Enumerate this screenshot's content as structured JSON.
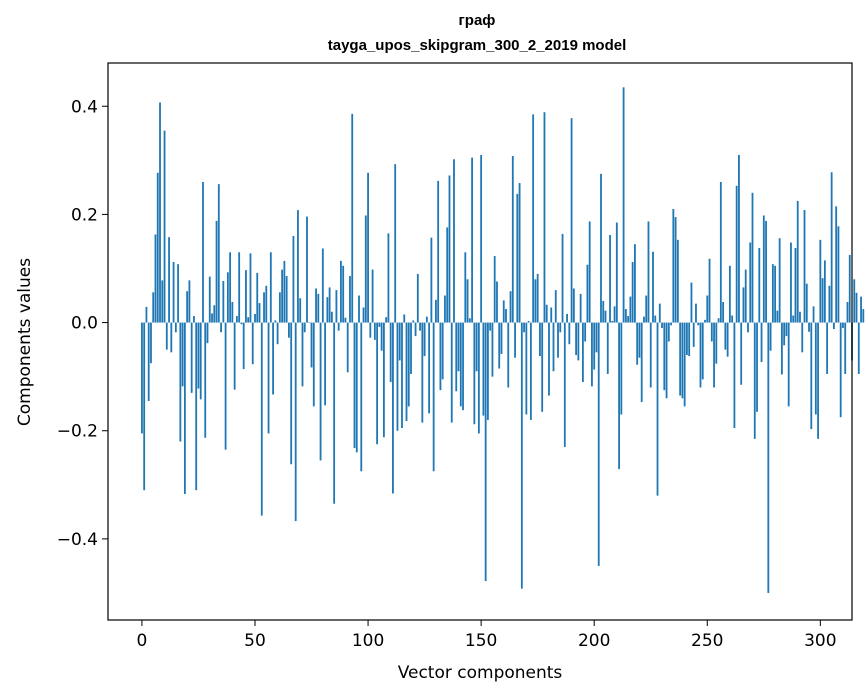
{
  "chart_data": {
    "type": "bar",
    "title_line1": "граф",
    "title_line2": "tayga_upos_skipgram_300_2_2019 model",
    "xlabel": "Vector components",
    "ylabel": "Components values",
    "xlim": [
      -15,
      314
    ],
    "ylim": [
      -0.55,
      0.48
    ],
    "xticks": [
      0,
      50,
      100,
      150,
      200,
      250,
      300
    ],
    "xtick_labels": [
      "0",
      "50",
      "100",
      "150",
      "200",
      "250",
      "300"
    ],
    "yticks": [
      -0.4,
      -0.2,
      0.0,
      0.2,
      0.4
    ],
    "ytick_labels": [
      "−0.4",
      "−0.2",
      "0.0",
      "0.2",
      "0.4"
    ],
    "grid": false,
    "bar_color": "#1f77b4",
    "values": [
      -0.205,
      -0.31,
      0.029,
      -0.145,
      -0.075,
      0.056,
      0.163,
      0.277,
      0.407,
      0.078,
      0.355,
      -0.05,
      0.158,
      -0.055,
      0.112,
      -0.018,
      0.108,
      -0.22,
      -0.118,
      -0.317,
      0.058,
      0.078,
      -0.13,
      0.012,
      -0.31,
      -0.122,
      -0.142,
      0.26,
      -0.213,
      -0.038,
      0.085,
      0.017,
      0.032,
      0.188,
      0.256,
      -0.018,
      0.077,
      -0.235,
      0.093,
      0.13,
      0.038,
      -0.124,
      0.012,
      0.13,
      -0.003,
      -0.086,
      0.097,
      0.01,
      0.128,
      -0.077,
      0.016,
      0.092,
      0.036,
      -0.357,
      0.056,
      0.068,
      -0.205,
      0.13,
      -0.133,
      0.004,
      -0.04,
      0.056,
      0.098,
      0.114,
      0.086,
      -0.028,
      -0.262,
      0.16,
      -0.367,
      0.208,
      0.045,
      -0.118,
      -0.018,
      0.196,
      0.001,
      -0.083,
      -0.155,
      0.063,
      0.053,
      -0.255,
      0.137,
      -0.153,
      0.047,
      0.065,
      0.02,
      -0.335,
      0.06,
      -0.015,
      0.114,
      0.105,
      0.009,
      -0.092,
      0.086,
      0.386,
      -0.232,
      -0.24,
      0.05,
      -0.275,
      0.028,
      0.198,
      0.277,
      -0.028,
      0.098,
      -0.032,
      -0.225,
      -0.008,
      -0.052,
      -0.212,
      0.01,
      0.165,
      -0.11,
      -0.316,
      0.293,
      -0.2,
      -0.07,
      -0.195,
      0.015,
      -0.182,
      -0.155,
      -0.095,
      0.004,
      -0.025,
      0.09,
      -0.015,
      -0.185,
      -0.062,
      0.011,
      -0.168,
      0.157,
      -0.275,
      0.042,
      0.262,
      -0.125,
      -0.105,
      0.05,
      0.176,
      0.272,
      -0.185,
      0.302,
      -0.127,
      -0.09,
      -0.155,
      -0.162,
      0.13,
      0.08,
      0.008,
      0.305,
      -0.188,
      -0.09,
      -0.205,
      0.31,
      -0.172,
      -0.478,
      -0.18,
      -0.015,
      -0.1,
      0.123,
      0.076,
      -0.085,
      -0.058,
      0.041,
      0.025,
      -0.12,
      0.058,
      0.308,
      -0.065,
      0.238,
      0.258,
      -0.492,
      -0.018,
      -0.17,
      0.003,
      -0.18,
      0.385,
      0.08,
      0.09,
      -0.062,
      -0.165,
      0.389,
      0.033,
      -0.135,
      0.028,
      -0.09,
      0.06,
      -0.065,
      -0.018,
      0.164,
      -0.23,
      0.016,
      -0.04,
      0.378,
      0.063,
      -0.06,
      -0.07,
      0.053,
      -0.11,
      -0.035,
      0.107,
      0.187,
      -0.118,
      -0.087,
      -0.055,
      -0.45,
      0.275,
      0.04,
      0.022,
      -0.095,
      0.162,
      0.003,
      0.03,
      0.185,
      -0.271,
      -0.17,
      0.435,
      0.025,
      0.012,
      0.048,
      0.112,
      0.145,
      -0.078,
      -0.065,
      -0.147,
      0.011,
      0.05,
      0.187,
      -0.12,
      0.131,
      0.013,
      -0.32,
      0.035,
      -0.01,
      -0.125,
      -0.14,
      -0.035,
      -0.005,
      0.21,
      0.195,
      0.153,
      -0.135,
      -0.14,
      -0.155,
      -0.06,
      -0.062,
      0.074,
      -0.045,
      0.035,
      -0.005,
      -0.12,
      -0.105,
      0.005,
      0.05,
      0.118,
      -0.035,
      -0.12,
      -0.076,
      0.008,
      0.26,
      0.038,
      -0.05,
      -0.063,
      0.105,
      0.013,
      -0.195,
      0.253,
      0.31,
      -0.115,
      0.065,
      0.098,
      -0.018,
      0.148,
      0.24,
      -0.215,
      -0.165,
      0.138,
      -0.073,
      0.198,
      0.188,
      -0.5,
      -0.052,
      0.108,
      0.105,
      0.022,
      0.156,
      -0.096,
      -0.042,
      -0.025,
      -0.155,
      0.148,
      0.013,
      0.138,
      0.225,
      0.02,
      -0.055,
      0.208,
      0.072,
      -0.017,
      -0.197,
      0.03,
      -0.17,
      -0.215,
      0.153,
      0.082,
      0.115,
      -0.095,
      0.068,
      0.278,
      -0.012,
      0.215,
      0.178,
      -0.175,
      -0.01,
      -0.095,
      0.038,
      0.125,
      -0.07,
      0.08,
      0.055,
      -0.095,
      0.048,
      0.025
    ]
  }
}
